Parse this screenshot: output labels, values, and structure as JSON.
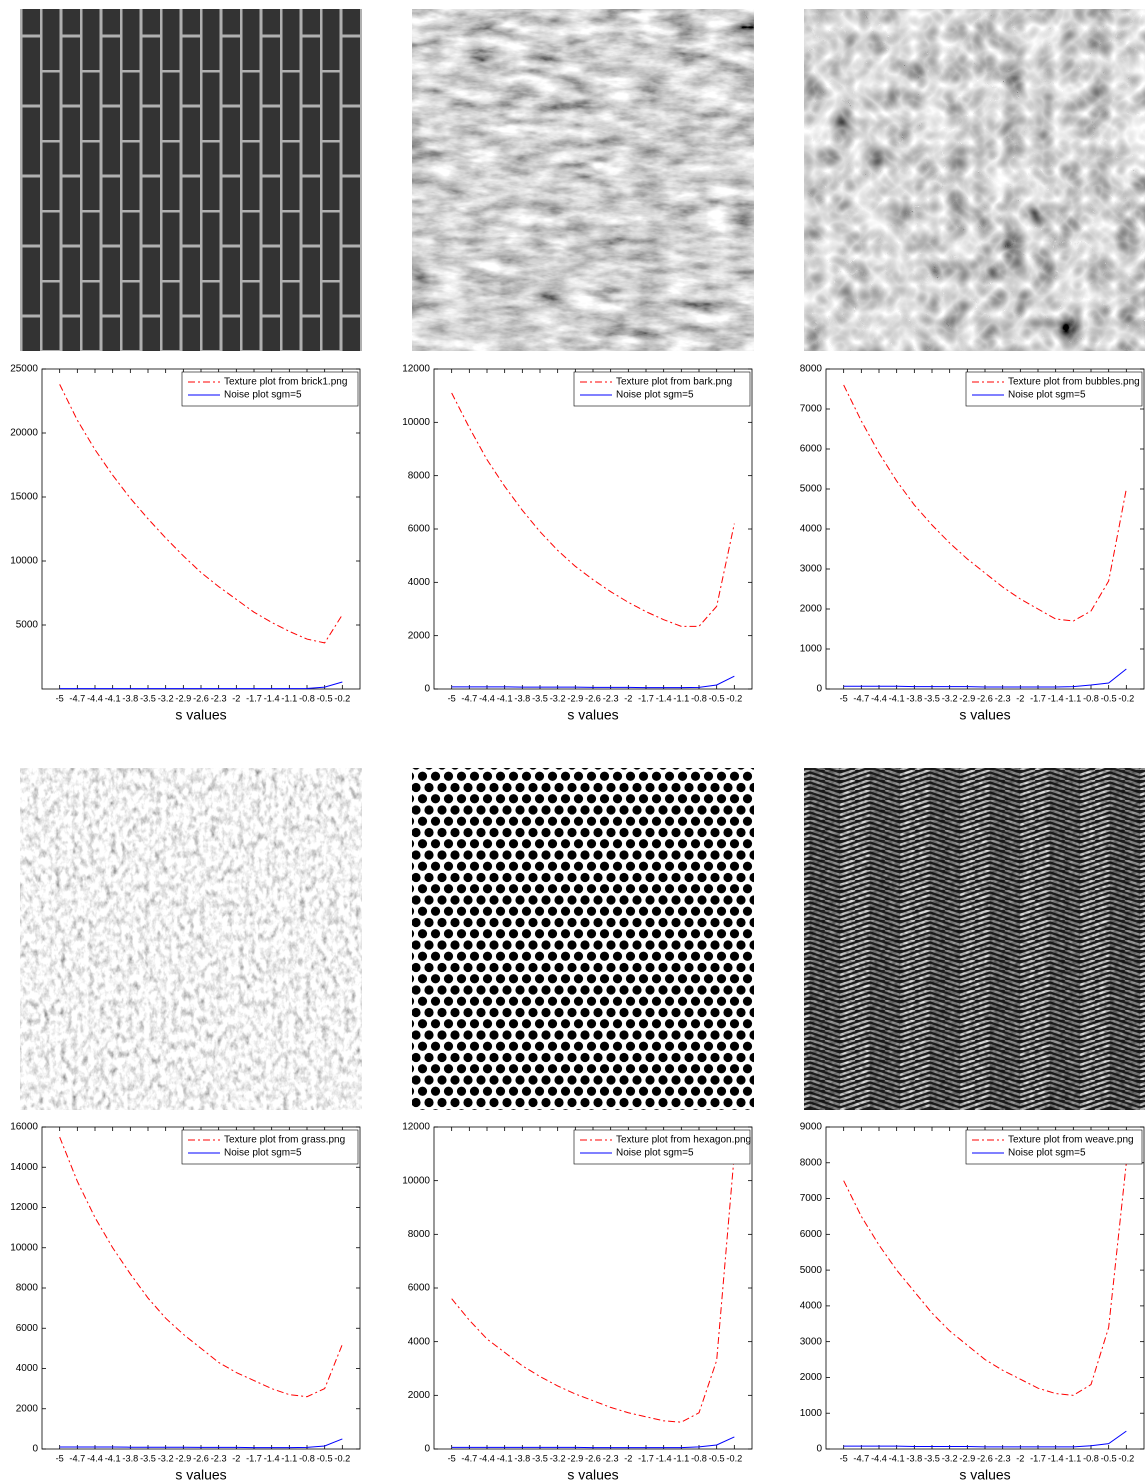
{
  "chart_data": [
    {
      "type": "line",
      "xlabel": "s values",
      "x": [
        -5,
        -4.7,
        -4.4,
        -4.1,
        -3.8,
        -3.5,
        -3.2,
        -2.9,
        -2.6,
        -2.3,
        -2,
        -1.7,
        -1.4,
        -1.1,
        -0.8,
        -0.5,
        -0.2
      ],
      "xlim": [
        -5.3,
        0.1
      ],
      "xticks": [
        -5,
        -4.7,
        -4.4,
        -4.1,
        -3.8,
        -3.5,
        -3.2,
        -2.9,
        -2.6,
        -2.3,
        -2,
        -1.7,
        -1.4,
        -1.1,
        -0.8,
        -0.5,
        -0.2
      ],
      "ylim": [
        0,
        25000
      ],
      "yticks": [
        5000,
        10000,
        15000,
        20000,
        25000
      ],
      "series": [
        {
          "name": "Texture plot from brick1.png",
          "color": "#ff0000",
          "linestyle": "-.",
          "values": [
            23800,
            21000,
            18700,
            16700,
            14900,
            13300,
            11800,
            10400,
            9100,
            8000,
            7000,
            6000,
            5200,
            4500,
            3900,
            3600,
            5800
          ]
        },
        {
          "name": "Noise plot sgm=5",
          "color": "#0000ff",
          "linestyle": "-",
          "values": [
            30,
            30,
            30,
            30,
            30,
            30,
            30,
            30,
            30,
            30,
            30,
            30,
            30,
            30,
            40,
            150,
            550
          ]
        }
      ]
    },
    {
      "type": "line",
      "xlabel": "s values",
      "x": [
        -5,
        -4.7,
        -4.4,
        -4.1,
        -3.8,
        -3.5,
        -3.2,
        -2.9,
        -2.6,
        -2.3,
        -2,
        -1.7,
        -1.4,
        -1.1,
        -0.8,
        -0.5,
        -0.2
      ],
      "xlim": [
        -5.3,
        0.1
      ],
      "xticks": [
        -5,
        -4.7,
        -4.4,
        -4.1,
        -3.8,
        -3.5,
        -3.2,
        -2.9,
        -2.6,
        -2.3,
        -2,
        -1.7,
        -1.4,
        -1.1,
        -0.8,
        -0.5,
        -0.2
      ],
      "ylim": [
        0,
        12000
      ],
      "yticks": [
        0,
        2000,
        4000,
        6000,
        8000,
        10000,
        12000
      ],
      "series": [
        {
          "name": "Texture plot from bark.png",
          "color": "#ff0000",
          "linestyle": "-.",
          "values": [
            11100,
            9800,
            8600,
            7600,
            6700,
            5900,
            5200,
            4600,
            4100,
            3650,
            3250,
            2900,
            2600,
            2350,
            2350,
            3100,
            6200
          ]
        },
        {
          "name": "Noise plot sgm=5",
          "color": "#0000ff",
          "linestyle": "-",
          "values": [
            80,
            80,
            80,
            80,
            70,
            70,
            70,
            70,
            60,
            60,
            60,
            50,
            50,
            50,
            60,
            150,
            480
          ]
        }
      ]
    },
    {
      "type": "line",
      "xlabel": "s values",
      "x": [
        -5,
        -4.7,
        -4.4,
        -4.1,
        -3.8,
        -3.5,
        -3.2,
        -2.9,
        -2.6,
        -2.3,
        -2,
        -1.7,
        -1.4,
        -1.1,
        -0.8,
        -0.5,
        -0.2
      ],
      "xlim": [
        -5.3,
        0.1
      ],
      "xticks": [
        -5,
        -4.7,
        -4.4,
        -4.1,
        -3.8,
        -3.5,
        -3.2,
        -2.9,
        -2.6,
        -2.3,
        -2,
        -1.7,
        -1.4,
        -1.1,
        -0.8,
        -0.5,
        -0.2
      ],
      "ylim": [
        0,
        8000
      ],
      "yticks": [
        0,
        1000,
        2000,
        3000,
        4000,
        5000,
        6000,
        7000,
        8000
      ],
      "series": [
        {
          "name": "Texture plot from bubbles.png",
          "color": "#ff0000",
          "linestyle": "-.",
          "values": [
            7600,
            6700,
            5900,
            5200,
            4600,
            4100,
            3650,
            3250,
            2900,
            2550,
            2250,
            2000,
            1750,
            1700,
            1950,
            2700,
            5000
          ]
        },
        {
          "name": "Noise plot sgm=5",
          "color": "#0000ff",
          "linestyle": "-",
          "values": [
            70,
            70,
            70,
            70,
            60,
            60,
            60,
            60,
            50,
            50,
            50,
            50,
            50,
            60,
            100,
            150,
            500
          ]
        }
      ]
    },
    {
      "type": "line",
      "xlabel": "s values",
      "x": [
        -5,
        -4.7,
        -4.4,
        -4.1,
        -3.8,
        -3.5,
        -3.2,
        -2.9,
        -2.6,
        -2.3,
        -2,
        -1.7,
        -1.4,
        -1.1,
        -0.8,
        -0.5,
        -0.2
      ],
      "xlim": [
        -5.3,
        0.1
      ],
      "xticks": [
        -5,
        -4.7,
        -4.4,
        -4.1,
        -3.8,
        -3.5,
        -3.2,
        -2.9,
        -2.6,
        -2.3,
        -2,
        -1.7,
        -1.4,
        -1.1,
        -0.8,
        -0.5,
        -0.2
      ],
      "ylim": [
        0,
        16000
      ],
      "yticks": [
        0,
        2000,
        4000,
        6000,
        8000,
        10000,
        12000,
        14000,
        16000
      ],
      "series": [
        {
          "name": "Texture plot from grass.png",
          "color": "#ff0000",
          "linestyle": "-.",
          "values": [
            15500,
            13300,
            11500,
            10000,
            8700,
            7500,
            6500,
            5700,
            5000,
            4300,
            3800,
            3400,
            3000,
            2700,
            2600,
            3000,
            5200
          ]
        },
        {
          "name": "Noise plot sgm=5",
          "color": "#0000ff",
          "linestyle": "-",
          "values": [
            100,
            100,
            100,
            100,
            90,
            90,
            90,
            90,
            80,
            80,
            80,
            70,
            70,
            70,
            80,
            150,
            500
          ]
        }
      ]
    },
    {
      "type": "line",
      "xlabel": "s values",
      "x": [
        -5,
        -4.7,
        -4.4,
        -4.1,
        -3.8,
        -3.5,
        -3.2,
        -2.9,
        -2.6,
        -2.3,
        -2,
        -1.7,
        -1.4,
        -1.1,
        -0.8,
        -0.5,
        -0.2
      ],
      "xlim": [
        -5.3,
        0.1
      ],
      "xticks": [
        -5,
        -4.7,
        -4.4,
        -4.1,
        -3.8,
        -3.5,
        -3.2,
        -2.9,
        -2.6,
        -2.3,
        -2,
        -1.7,
        -1.4,
        -1.1,
        -0.8,
        -0.5,
        -0.2
      ],
      "ylim": [
        0,
        12000
      ],
      "yticks": [
        0,
        2000,
        4000,
        6000,
        8000,
        10000,
        12000
      ],
      "series": [
        {
          "name": "Texture plot from hexagon.png",
          "color": "#ff0000",
          "linestyle": "-.",
          "values": [
            5600,
            4800,
            4100,
            3600,
            3100,
            2700,
            2350,
            2050,
            1800,
            1550,
            1350,
            1200,
            1050,
            1000,
            1350,
            3300,
            11000
          ]
        },
        {
          "name": "Noise plot sgm=5",
          "color": "#0000ff",
          "linestyle": "-",
          "values": [
            60,
            60,
            60,
            60,
            60,
            60,
            60,
            60,
            50,
            50,
            50,
            50,
            50,
            50,
            80,
            150,
            450
          ]
        }
      ]
    },
    {
      "type": "line",
      "xlabel": "s values",
      "x": [
        -5,
        -4.7,
        -4.4,
        -4.1,
        -3.8,
        -3.5,
        -3.2,
        -2.9,
        -2.6,
        -2.3,
        -2,
        -1.7,
        -1.4,
        -1.1,
        -0.8,
        -0.5,
        -0.2
      ],
      "xlim": [
        -5.3,
        0.1
      ],
      "xticks": [
        -5,
        -4.7,
        -4.4,
        -4.1,
        -3.8,
        -3.5,
        -3.2,
        -2.9,
        -2.6,
        -2.3,
        -2,
        -1.7,
        -1.4,
        -1.1,
        -0.8,
        -0.5,
        -0.2
      ],
      "ylim": [
        0,
        9000
      ],
      "yticks": [
        0,
        1000,
        2000,
        3000,
        4000,
        5000,
        6000,
        7000,
        8000,
        9000
      ],
      "series": [
        {
          "name": "Texture plot from weave.png",
          "color": "#ff0000",
          "linestyle": "-.",
          "values": [
            7500,
            6500,
            5700,
            5000,
            4400,
            3800,
            3300,
            2900,
            2500,
            2200,
            1950,
            1700,
            1550,
            1500,
            1800,
            3400,
            8000
          ]
        },
        {
          "name": "Noise plot sgm=5",
          "color": "#0000ff",
          "linestyle": "-",
          "values": [
            80,
            80,
            80,
            80,
            70,
            70,
            70,
            70,
            60,
            60,
            60,
            60,
            60,
            60,
            90,
            150,
            500
          ]
        }
      ]
    }
  ]
}
